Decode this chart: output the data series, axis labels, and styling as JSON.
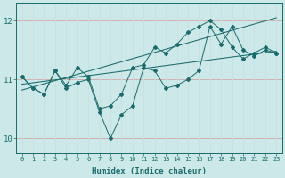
{
  "xlabel": "Humidex (Indice chaleur)",
  "bg_color": "#cce8e8",
  "line_color": "#1a6b6b",
  "grid_color_h": "#c8e0e0",
  "grid_color_v": "#c8e0e0",
  "xlim": [
    -0.5,
    23.5
  ],
  "ylim": [
    9.75,
    12.3
  ],
  "yticks": [
    10,
    11,
    12
  ],
  "xticks": [
    0,
    1,
    2,
    3,
    4,
    5,
    6,
    7,
    8,
    9,
    10,
    11,
    12,
    13,
    14,
    15,
    16,
    17,
    18,
    19,
    20,
    21,
    22,
    23
  ],
  "series1_x": [
    0,
    1,
    2,
    3,
    4,
    5,
    6,
    7,
    8,
    9,
    10,
    11,
    12,
    13,
    14,
    15,
    16,
    17,
    18,
    19,
    20,
    21,
    22,
    23
  ],
  "series1_y": [
    11.05,
    10.85,
    10.75,
    11.15,
    10.85,
    10.95,
    11.0,
    10.45,
    10.0,
    10.4,
    10.55,
    11.2,
    11.15,
    10.85,
    10.9,
    11.0,
    11.15,
    11.9,
    11.6,
    11.9,
    11.5,
    11.4,
    11.5,
    11.45
  ],
  "series2_x": [
    0,
    1,
    2,
    3,
    4,
    5,
    6,
    7,
    8,
    9,
    10,
    11,
    12,
    13,
    14,
    15,
    16,
    17,
    18,
    19,
    20,
    21,
    22,
    23
  ],
  "series2_y": [
    11.05,
    10.85,
    10.75,
    11.15,
    10.9,
    11.2,
    11.05,
    10.5,
    10.55,
    10.75,
    11.2,
    11.25,
    11.55,
    11.45,
    11.6,
    11.8,
    11.9,
    12.0,
    11.85,
    11.55,
    11.35,
    11.45,
    11.55,
    11.45
  ],
  "trend1_x": [
    0,
    23
  ],
  "trend1_y": [
    10.92,
    11.48
  ],
  "trend2_x": [
    0,
    23
  ],
  "trend2_y": [
    10.82,
    12.05
  ]
}
